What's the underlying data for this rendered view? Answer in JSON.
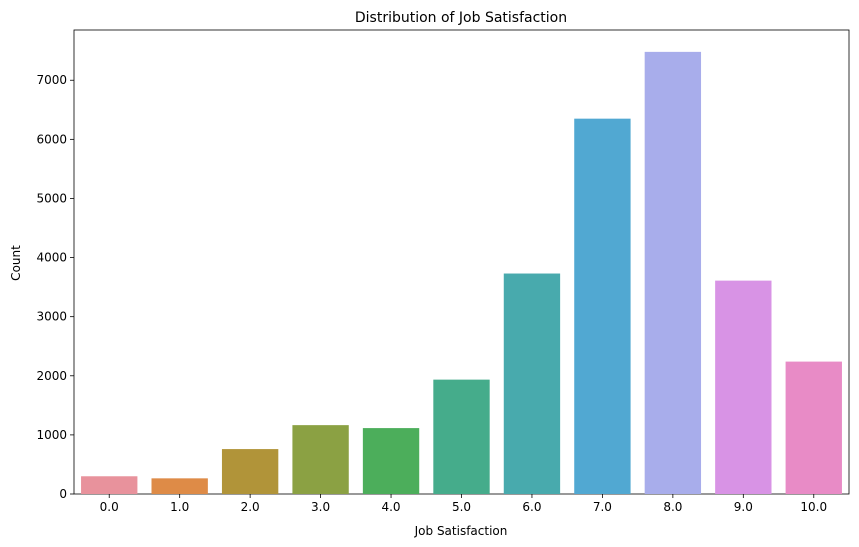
{
  "chart_data": {
    "type": "bar",
    "title": "Distribution of Job Satisfaction",
    "xlabel": "Job Satisfaction",
    "ylabel": "Count",
    "categories": [
      "0.0",
      "1.0",
      "2.0",
      "3.0",
      "4.0",
      "5.0",
      "6.0",
      "7.0",
      "8.0",
      "9.0",
      "10.0"
    ],
    "values": [
      300,
      265,
      760,
      1165,
      1115,
      1935,
      3730,
      6350,
      7480,
      3610,
      2240
    ],
    "colors": [
      "#E8929C",
      "#DE8B47",
      "#B19439",
      "#8BA143",
      "#4CAE5B",
      "#45AC8B",
      "#48AAAD",
      "#51A8D2",
      "#A8ADEB",
      "#D893E5",
      "#E88BC6"
    ],
    "yticks": [
      0,
      1000,
      2000,
      3000,
      4000,
      5000,
      6000,
      7000
    ],
    "ylim": [
      0,
      7850
    ],
    "grid": false,
    "legend": "none"
  }
}
